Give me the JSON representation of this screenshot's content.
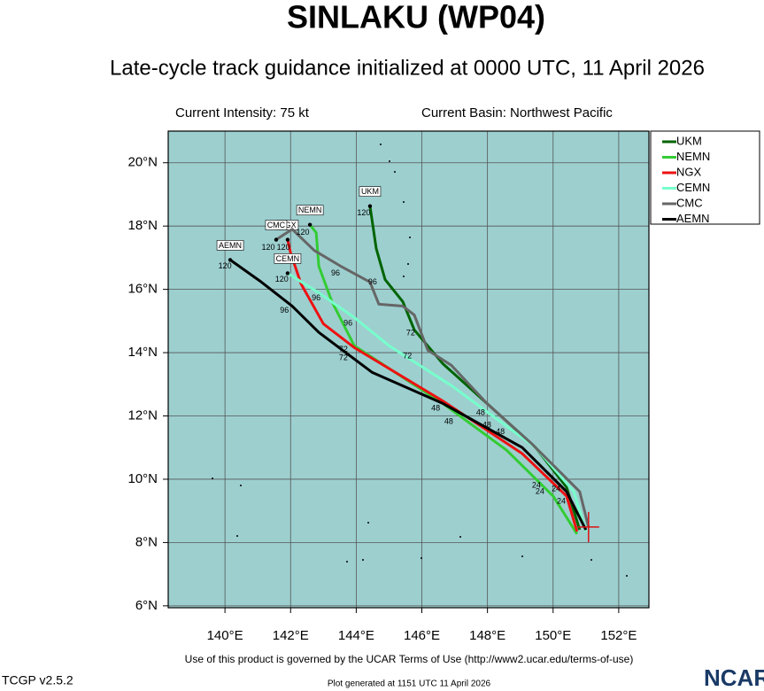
{
  "title": "SINLAKU (WP04)",
  "subtitle": "Late-cycle track guidance initialized at 0000 UTC, 11 April 2026",
  "intensity": "Current Intensity: 75 kt",
  "basin": "Current Basin: Northwest Pacific",
  "terms": "Use of this product is governed by the UCAR Terms of Use (http://www2.ucar.edu/terms-of-use)",
  "version": "TCGP v2.5.2",
  "generated": "Plot generated at 1151 UTC   11 April 2026",
  "logo": "NCAR",
  "chart_data": {
    "type": "track",
    "xlim": [
      138.27,
      152.92
    ],
    "ylim": [
      5.94,
      21
    ],
    "xticks": [
      {
        "value": 140,
        "label": "140°E"
      },
      {
        "value": 142,
        "label": "142°E"
      },
      {
        "value": 144,
        "label": "144°E"
      },
      {
        "value": 146,
        "label": "146°E"
      },
      {
        "value": 148,
        "label": "148°E"
      },
      {
        "value": 150,
        "label": "150°E"
      },
      {
        "value": 152,
        "label": "152°E"
      }
    ],
    "yticks": [
      {
        "value": 6,
        "label": "6°N"
      },
      {
        "value": 8,
        "label": "8°N"
      },
      {
        "value": 10,
        "label": "10°N"
      },
      {
        "value": 12,
        "label": "12°N"
      },
      {
        "value": 14,
        "label": "14°N"
      },
      {
        "value": 16,
        "label": "16°N"
      },
      {
        "value": 18,
        "label": "18°N"
      },
      {
        "value": 20,
        "label": "20°N"
      }
    ],
    "grid": true,
    "background": "#9dcfcf",
    "current_position": {
      "lon": 151.08,
      "lat": 8.49,
      "color": "#dd1111"
    },
    "series": [
      {
        "name": "UKM",
        "color": "#006400",
        "lon": [
          150.81,
          150.41,
          149.47,
          147.98,
          146.63,
          145.77,
          145.42,
          144.88,
          144.61,
          144.42
        ],
        "lat": [
          8.4,
          9.75,
          11.0,
          12.4,
          13.66,
          14.72,
          15.61,
          16.31,
          17.29,
          18.63
        ]
      },
      {
        "name": "NEMN",
        "color": "#33cc33",
        "lon": [
          150.73,
          150.0,
          148.58,
          146.63,
          143.94,
          143.26,
          142.86,
          142.78,
          142.59
        ],
        "lat": [
          8.27,
          9.47,
          10.92,
          12.4,
          14.22,
          15.61,
          16.73,
          17.79,
          18.04
        ]
      },
      {
        "name": "NGX",
        "color": "#ee1111",
        "lon": [
          150.73,
          150.41,
          149.06,
          146.63,
          143.94,
          143.0,
          142.32,
          142.0,
          141.91
        ],
        "lat": [
          8.35,
          9.47,
          10.81,
          12.48,
          14.16,
          14.91,
          16.17,
          17.15,
          17.57
        ]
      },
      {
        "name": "CEMN",
        "color": "#77ffcc",
        "lon": [
          151.0,
          150.63,
          149.47,
          146.9,
          145.0,
          143.94,
          142.86,
          141.91
        ],
        "lat": [
          8.35,
          9.61,
          11.0,
          12.96,
          14.22,
          15.11,
          15.89,
          16.51
        ]
      },
      {
        "name": "CMC",
        "color": "#666666",
        "lon": [
          151.08,
          150.81,
          149.33,
          147.98,
          146.9,
          146.18,
          145.77,
          145.42,
          144.69,
          144.42,
          143.53,
          142.72,
          142.05,
          141.56
        ],
        "lat": [
          8.49,
          9.61,
          11.14,
          12.4,
          13.6,
          14.08,
          15.19,
          15.47,
          15.53,
          16.23,
          16.73,
          17.23,
          17.9,
          17.57
        ]
      },
      {
        "name": "AEMN",
        "color": "#000000",
        "lon": [
          151.0,
          150.41,
          149.06,
          146.63,
          144.48,
          142.86,
          142.05,
          141.11,
          140.16
        ],
        "lat": [
          8.4,
          9.61,
          11.0,
          12.4,
          13.38,
          14.64,
          15.47,
          16.23,
          16.93
        ]
      }
    ],
    "hour_labels": [
      {
        "text": "120",
        "lon": 144.23,
        "lat": 18.41
      },
      {
        "text": "120",
        "lon": 142.37,
        "lat": 17.79
      },
      {
        "text": "120",
        "lon": 141.32,
        "lat": 17.32
      },
      {
        "text": "120",
        "lon": 141.78,
        "lat": 17.32
      },
      {
        "text": "120",
        "lon": 141.73,
        "lat": 16.31
      },
      {
        "text": "120",
        "lon": 140.0,
        "lat": 16.73
      },
      {
        "text": "96",
        "lon": 143.37,
        "lat": 16.51
      },
      {
        "text": "96",
        "lon": 144.5,
        "lat": 16.23
      },
      {
        "text": "96",
        "lon": 142.78,
        "lat": 15.72
      },
      {
        "text": "96",
        "lon": 141.81,
        "lat": 15.33
      },
      {
        "text": "96",
        "lon": 143.75,
        "lat": 14.92
      },
      {
        "text": "72",
        "lon": 145.66,
        "lat": 14.61
      },
      {
        "text": "72",
        "lon": 145.56,
        "lat": 13.88
      },
      {
        "text": "72",
        "lon": 143.61,
        "lat": 14.1
      },
      {
        "text": "72",
        "lon": 143.61,
        "lat": 13.83
      },
      {
        "text": "48",
        "lon": 147.79,
        "lat": 12.09
      },
      {
        "text": "48",
        "lon": 146.42,
        "lat": 12.23
      },
      {
        "text": "48",
        "lon": 146.82,
        "lat": 11.81
      },
      {
        "text": "48",
        "lon": 147.98,
        "lat": 11.7
      },
      {
        "text": "48",
        "lon": 148.39,
        "lat": 11.5
      },
      {
        "text": "24",
        "lon": 149.49,
        "lat": 9.8
      },
      {
        "text": "24",
        "lon": 149.6,
        "lat": 9.61
      },
      {
        "text": "24",
        "lon": 150.25,
        "lat": 9.3
      },
      {
        "text": "24",
        "lon": 150.09,
        "lat": 9.69
      }
    ]
  }
}
